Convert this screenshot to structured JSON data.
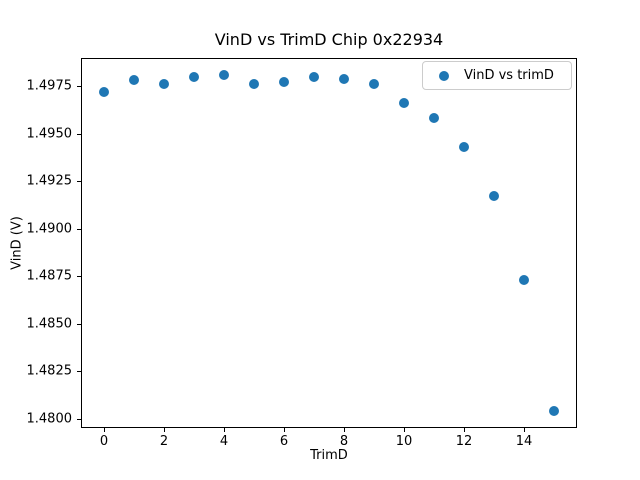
{
  "figure": {
    "background": "#ffffff"
  },
  "chart_data": {
    "type": "scatter",
    "title": "VinD vs TrimD Chip 0x22934",
    "xlabel": "TrimD",
    "ylabel": "VinD (V)",
    "series": [
      {
        "name": "VinD vs trimD",
        "marker": "circle",
        "color": "#1f77b4",
        "x": [
          0,
          1,
          2,
          3,
          4,
          5,
          6,
          7,
          8,
          9,
          10,
          11,
          12,
          13,
          14,
          15
        ],
        "y": [
          1.4972,
          1.4978,
          1.4976,
          1.498,
          1.4981,
          1.4976,
          1.4977,
          1.498,
          1.4979,
          1.4976,
          1.4966,
          1.4958,
          1.4943,
          1.4917,
          1.4873,
          1.4804
        ]
      }
    ],
    "xlim": [
      -0.75,
      15.75
    ],
    "ylim": [
      1.47952,
      1.49898
    ],
    "xticks": [
      0,
      2,
      4,
      6,
      8,
      10,
      12,
      14
    ],
    "xtick_labels": [
      "0",
      "2",
      "4",
      "6",
      "8",
      "10",
      "12",
      "14"
    ],
    "yticks": [
      1.48,
      1.4825,
      1.485,
      1.4875,
      1.49,
      1.4925,
      1.495,
      1.4975
    ],
    "ytick_labels": [
      "1.4800",
      "1.4825",
      "1.4850",
      "1.4875",
      "1.4900",
      "1.4925",
      "1.4950",
      "1.4975"
    ],
    "grid": false,
    "legend": {
      "visible": true,
      "position": "upper right",
      "entries": [
        "VinD vs trimD"
      ]
    }
  }
}
